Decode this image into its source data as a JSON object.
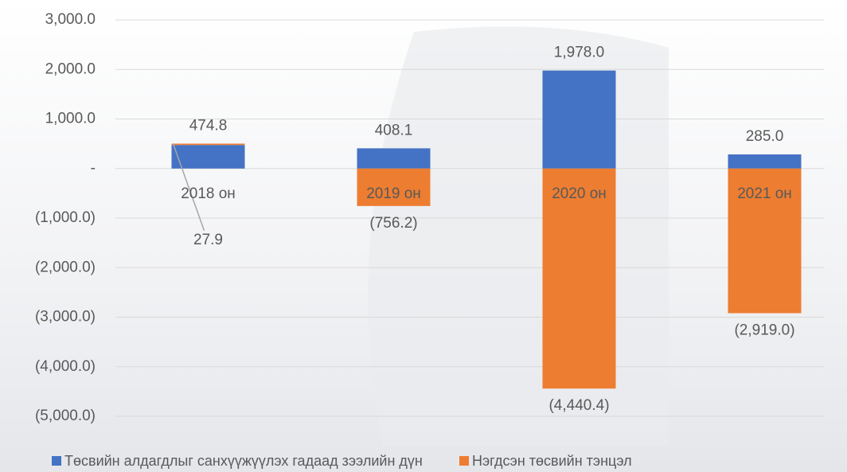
{
  "chart_data": {
    "type": "bar",
    "stacked": true,
    "categories": [
      "2018 он",
      "2019 он",
      "2020 он",
      "2021 он"
    ],
    "series": [
      {
        "name": "Төсвийн алдагдлыг санхүүжүүлэх гадаад зээлийн дүн",
        "color": "#4472c4",
        "values": [
          474.8,
          408.1,
          1978.0,
          285.0
        ],
        "value_labels": [
          "474.8",
          "408.1",
          "1,978.0",
          "285.0"
        ]
      },
      {
        "name": "Нэгдсэн төсвийн тэнцэл",
        "color": "#ed7d31",
        "values": [
          27.9,
          -756.2,
          -4440.4,
          -2919.0
        ],
        "value_labels": [
          "27.9",
          "(756.2)",
          "(4,440.4)",
          "(2,919.0)"
        ]
      }
    ],
    "ylim": [
      -5000,
      3000
    ],
    "yticks": [
      {
        "value": 3000,
        "label": "3,000.0"
      },
      {
        "value": 2000,
        "label": "2,000.0"
      },
      {
        "value": 1000,
        "label": "1,000.0"
      },
      {
        "value": 0,
        "label": "-"
      },
      {
        "value": -1000,
        "label": "(1,000.0)"
      },
      {
        "value": -2000,
        "label": "(2,000.0)"
      },
      {
        "value": -3000,
        "label": "(3,000.0)"
      },
      {
        "value": -4000,
        "label": "(4,000.0)"
      },
      {
        "value": -5000,
        "label": "(5,000.0)"
      }
    ],
    "grid": true,
    "legend": "bottom"
  }
}
